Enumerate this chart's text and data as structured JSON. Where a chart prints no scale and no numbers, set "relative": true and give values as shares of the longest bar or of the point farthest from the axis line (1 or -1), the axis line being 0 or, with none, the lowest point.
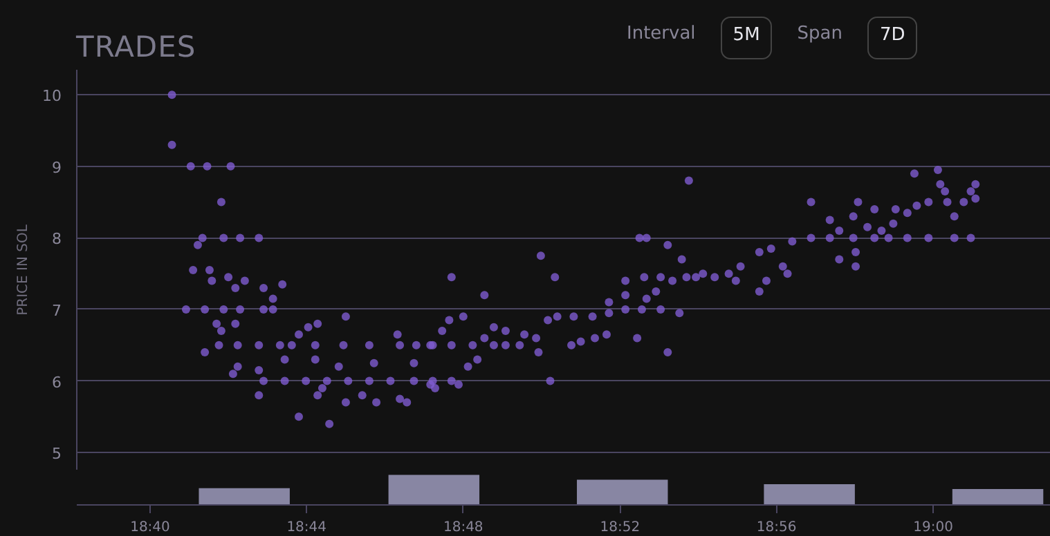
{
  "chart_data": [
    {
      "type": "scatter",
      "title": "TRADES",
      "ylabel": "PRICE IN SOL",
      "annotations": [
        "Interval",
        "5M",
        "Span",
        "7D"
      ],
      "color": "#7e5bd0",
      "marker": "circle",
      "grid": "y",
      "tick_labels": "y",
      "xlim": [
        18.6355,
        19.05
      ],
      "ylim": [
        4.75,
        10.35
      ],
      "yticks": [
        5,
        6,
        7,
        8,
        9,
        10
      ],
      "x": [
        18.676,
        18.676,
        18.684,
        18.691,
        18.701,
        18.697,
        18.689,
        18.687,
        18.698,
        18.705,
        18.713,
        18.685,
        18.692,
        18.693,
        18.7,
        18.703,
        18.707,
        18.715,
        18.719,
        18.723,
        18.682,
        18.69,
        18.698,
        18.705,
        18.715,
        18.719,
        18.695,
        18.703,
        18.697,
        18.69,
        18.696,
        18.704,
        18.713,
        18.722,
        18.727,
        18.704,
        18.702,
        18.713,
        18.713,
        18.73,
        18.743,
        18.715,
        18.724,
        18.733,
        18.742,
        18.751,
        18.76,
        18.769,
        18.779,
        18.787,
        18.795,
        18.738,
        18.75,
        18.757,
        18.763,
        18.773,
        18.776,
        18.788,
        18.73,
        18.734,
        18.738,
        18.75,
        18.737,
        18.749,
        18.76,
        18.772,
        18.773,
        18.78,
        18.787,
        18.795,
        18.791,
        18.795,
        18.794,
        18.724,
        18.737,
        18.747,
        18.762,
        18.779,
        18.74,
        18.809,
        18.833,
        18.839,
        18.896,
        18.875,
        18.878,
        18.887,
        18.893,
        18.786,
        18.804,
        18.813,
        18.818,
        18.786,
        18.798,
        18.837,
        18.8,
        18.802,
        18.806,
        18.809,
        18.813,
        18.818,
        18.824,
        18.826,
        18.831,
        18.832,
        18.836,
        18.84,
        18.847,
        18.855,
        18.862,
        18.869,
        18.876,
        18.846,
        18.85,
        18.856,
        18.861,
        18.874,
        18.887,
        18.862,
        18.869,
        18.869,
        18.877,
        18.878,
        18.882,
        18.884,
        18.889,
        18.895,
        18.902,
        18.884,
        18.892,
        18.899,
        18.907,
        18.913,
        18.916,
        18.918,
        18.926,
        18.931,
        18.929,
        18.926,
        18.938,
        18.936,
        18.94,
        18.948,
        18.948,
        18.956,
        18.966,
        18.975,
        18.956,
        18.96,
        18.96,
        18.967,
        18.967,
        18.968,
        18.966,
        18.972,
        18.975,
        18.978,
        18.981,
        18.983,
        18.984,
        18.989,
        18.993,
        18.998,
        19.006,
        19.013,
        19.018,
        18.989,
        18.998,
        19.009,
        19.016,
        18.992,
        19.002,
        19.003,
        19.005,
        19.009,
        19.016,
        19.018
      ],
      "values": [
        10.0,
        9.3,
        9.0,
        9.0,
        9.0,
        8.5,
        8.0,
        7.9,
        8.0,
        8.0,
        8.0,
        7.55,
        7.55,
        7.4,
        7.45,
        7.3,
        7.4,
        7.3,
        7.15,
        7.35,
        7.0,
        7.0,
        7.0,
        7.0,
        7.0,
        7.0,
        6.8,
        6.8,
        6.7,
        6.4,
        6.5,
        6.5,
        6.5,
        6.5,
        6.5,
        6.2,
        6.1,
        6.15,
        5.8,
        5.5,
        5.4,
        6.0,
        6.0,
        6.0,
        6.0,
        6.0,
        6.0,
        6.0,
        6.0,
        6.0,
        6.0,
        5.8,
        5.7,
        5.8,
        5.7,
        5.75,
        5.7,
        5.9,
        6.65,
        6.75,
        6.8,
        6.9,
        6.5,
        6.5,
        6.5,
        6.65,
        6.5,
        6.5,
        6.5,
        6.5,
        6.7,
        7.45,
        6.85,
        6.3,
        6.3,
        6.2,
        6.25,
        6.25,
        5.9,
        7.2,
        7.75,
        7.45,
        8.8,
        8.0,
        8.0,
        7.9,
        7.7,
        6.5,
        6.5,
        6.5,
        6.5,
        5.95,
        5.95,
        6.0,
        6.9,
        6.2,
        6.3,
        6.6,
        6.75,
        6.7,
        6.5,
        6.65,
        6.6,
        6.4,
        6.85,
        6.9,
        6.9,
        6.9,
        6.95,
        7.0,
        7.0,
        6.5,
        6.55,
        6.6,
        6.65,
        6.6,
        6.4,
        7.1,
        7.2,
        7.4,
        7.45,
        7.15,
        7.25,
        7.45,
        7.4,
        7.45,
        7.5,
        7.0,
        6.95,
        7.45,
        7.45,
        7.5,
        7.4,
        7.6,
        7.8,
        7.85,
        7.4,
        7.25,
        7.5,
        7.6,
        7.95,
        8.0,
        8.5,
        8.0,
        8.0,
        8.0,
        8.25,
        8.1,
        7.7,
        7.8,
        7.6,
        8.5,
        8.3,
        8.15,
        8.4,
        8.1,
        8.0,
        8.2,
        8.4,
        8.35,
        8.45,
        8.5,
        8.5,
        8.5,
        8.55,
        8.0,
        8.0,
        8.0,
        8.0,
        8.9,
        8.95,
        8.75,
        8.65,
        8.3,
        8.65,
        8.75
      ]
    },
    {
      "type": "bar",
      "relative": true,
      "color": "#8886a3",
      "tick_labels": "x",
      "xlim": [
        18.6355,
        19.05
      ],
      "xticks": [
        {
          "value": 18.6667,
          "label": "18:40"
        },
        {
          "value": 18.7333,
          "label": "18:44"
        },
        {
          "value": 18.8,
          "label": "18:48"
        },
        {
          "value": 18.8667,
          "label": "18:52"
        },
        {
          "value": 18.9333,
          "label": "18:56"
        },
        {
          "value": 19.0,
          "label": "19:00"
        }
      ],
      "x": [
        18.7068,
        18.7875,
        18.8677,
        18.9473,
        19.0275
      ],
      "values": [
        0.56,
        1,
        0.84,
        0.69,
        0.53
      ]
    }
  ]
}
